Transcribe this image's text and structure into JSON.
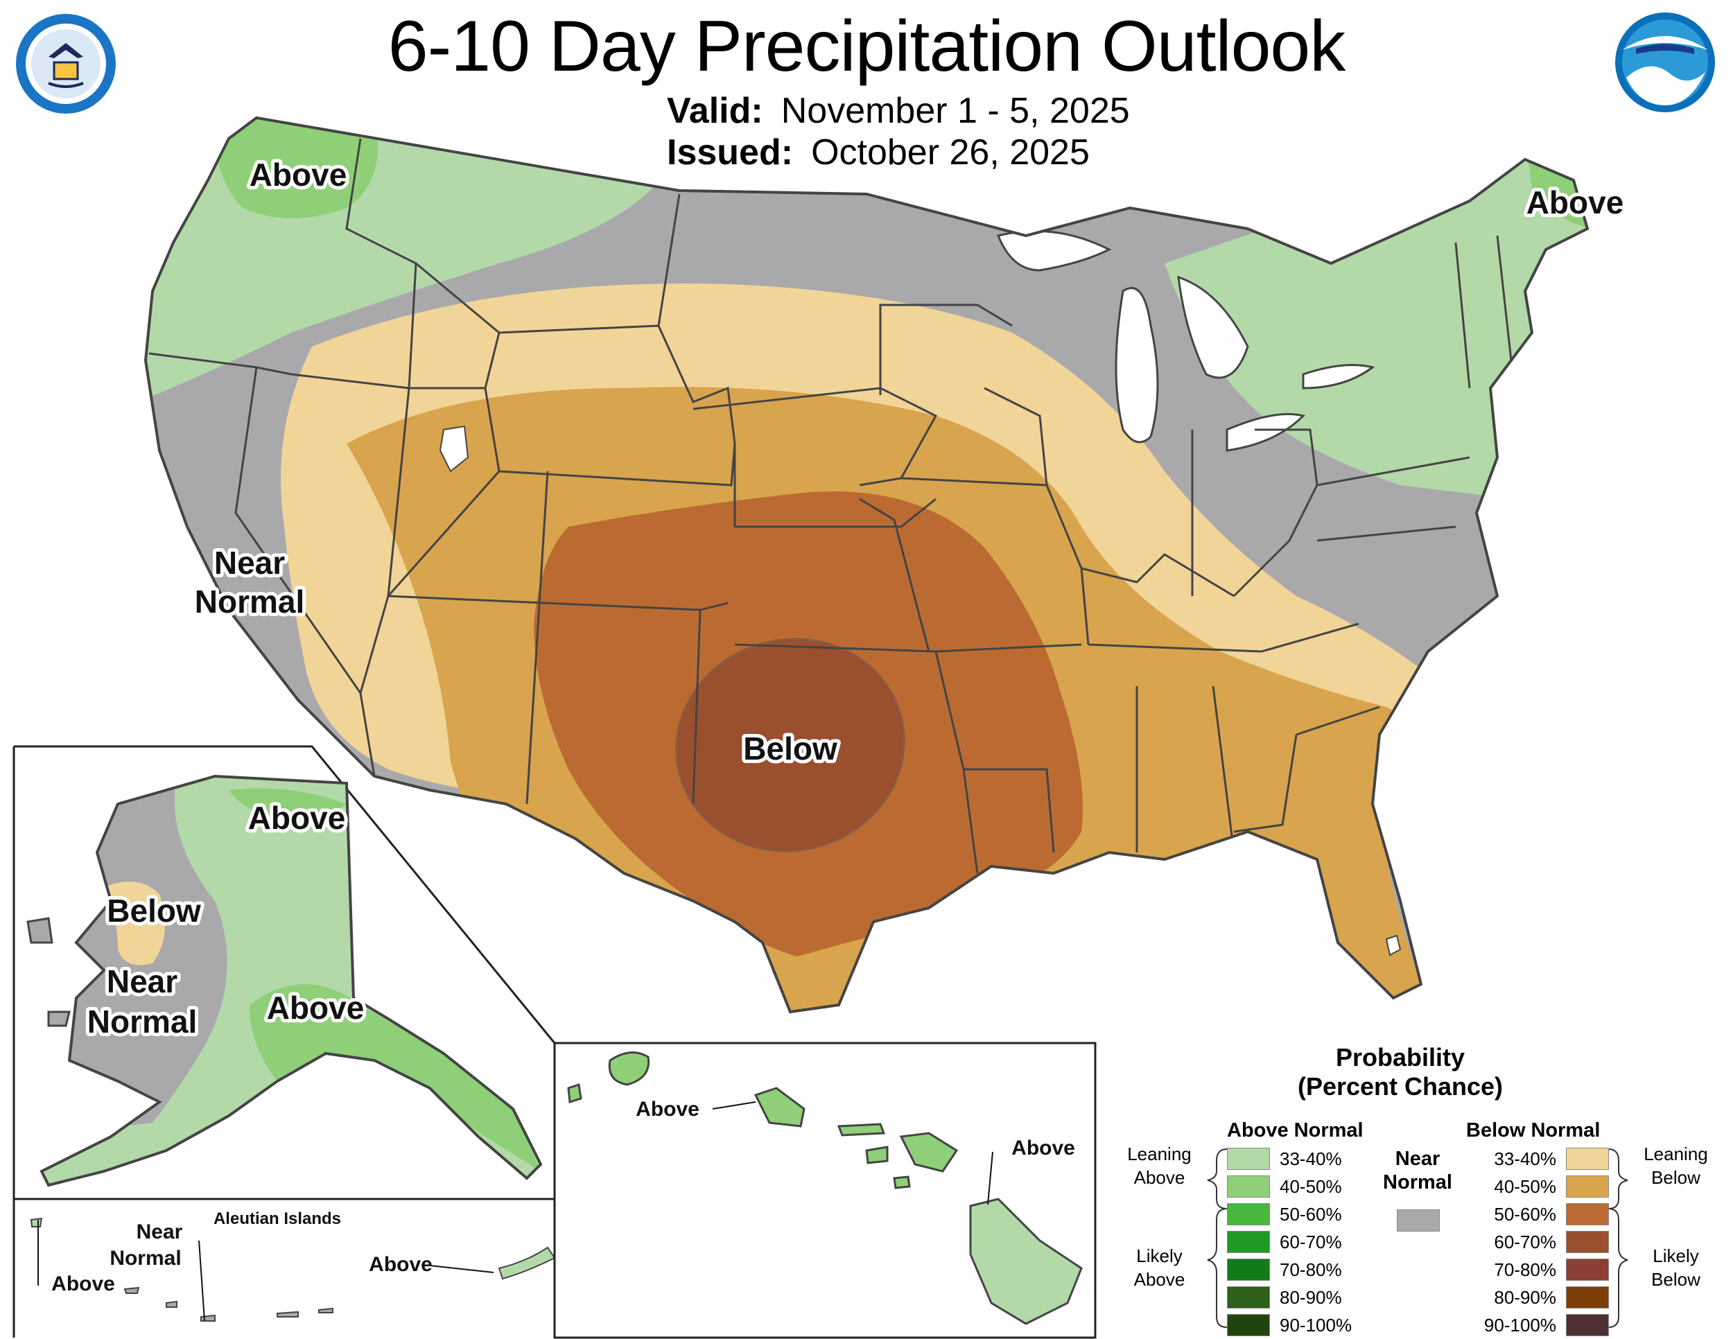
{
  "title": "6-10 Day Precipitation Outlook",
  "valid_label": "Valid:",
  "valid_value": "November 1 - 5, 2025",
  "issued_label": "Issued:",
  "issued_value": "October 26, 2025",
  "colors": {
    "above_33_40": "#b3d9a9",
    "above_40_50": "#8fcf78",
    "above_50_60": "#48b73e",
    "above_60_70": "#1f9a25",
    "above_70_80": "#127c18",
    "above_80_90": "#2e5f1b",
    "above_90_100": "#1f4410",
    "near_normal": "#a9a9ab",
    "below_33_40": "#f1d497",
    "below_40_50": "#d8a44d",
    "below_50_60": "#bb6b32",
    "below_60_70": "#9a4f2e",
    "below_70_80": "#8c3e35",
    "below_80_90": "#7b3e09",
    "below_90_100": "#4f3033",
    "border": "#444444",
    "water": "#ffffff"
  },
  "map_labels": {
    "conus_nw_above": "Above",
    "conus_ne_above": "Above",
    "conus_near_normal_1": "Near",
    "conus_near_normal_2": "Normal",
    "conus_below": "Below",
    "ak_above_north": "Above",
    "ak_below": "Below",
    "ak_near_1": "Near",
    "ak_near_2": "Normal",
    "ak_above_south": "Above",
    "aleutian_title": "Aleutian Islands",
    "aleutian_near_1": "Near",
    "aleutian_near_2": "Normal",
    "aleutian_above_west": "Above",
    "aleutian_above_east": "Above",
    "hi_above_west": "Above",
    "hi_above_east": "Above"
  },
  "legend": {
    "title_1": "Probability",
    "title_2": "(Percent Chance)",
    "above_header": "Above Normal",
    "below_header": "Below Normal",
    "near_1": "Near",
    "near_2": "Normal",
    "leaning_above_1": "Leaning",
    "leaning_above_2": "Above",
    "likely_above_1": "Likely",
    "likely_above_2": "Above",
    "leaning_below_1": "Leaning",
    "leaning_below_2": "Below",
    "likely_below_1": "Likely",
    "likely_below_2": "Below",
    "above": [
      {
        "pct": "33-40%",
        "color": "#b3d9a9"
      },
      {
        "pct": "40-50%",
        "color": "#8fcf78"
      },
      {
        "pct": "50-60%",
        "color": "#48b73e"
      },
      {
        "pct": "60-70%",
        "color": "#1f9a25"
      },
      {
        "pct": "70-80%",
        "color": "#127c18"
      },
      {
        "pct": "80-90%",
        "color": "#2e5f1b"
      },
      {
        "pct": "90-100%",
        "color": "#1f4410"
      }
    ],
    "below": [
      {
        "pct": "33-40%",
        "color": "#f1d497"
      },
      {
        "pct": "40-50%",
        "color": "#d8a44d"
      },
      {
        "pct": "50-60%",
        "color": "#bb6b32"
      },
      {
        "pct": "60-70%",
        "color": "#9a4f2e"
      },
      {
        "pct": "70-80%",
        "color": "#8c3e35"
      },
      {
        "pct": "80-90%",
        "color": "#7b3e09"
      },
      {
        "pct": "90-100%",
        "color": "#4f3033"
      }
    ]
  }
}
